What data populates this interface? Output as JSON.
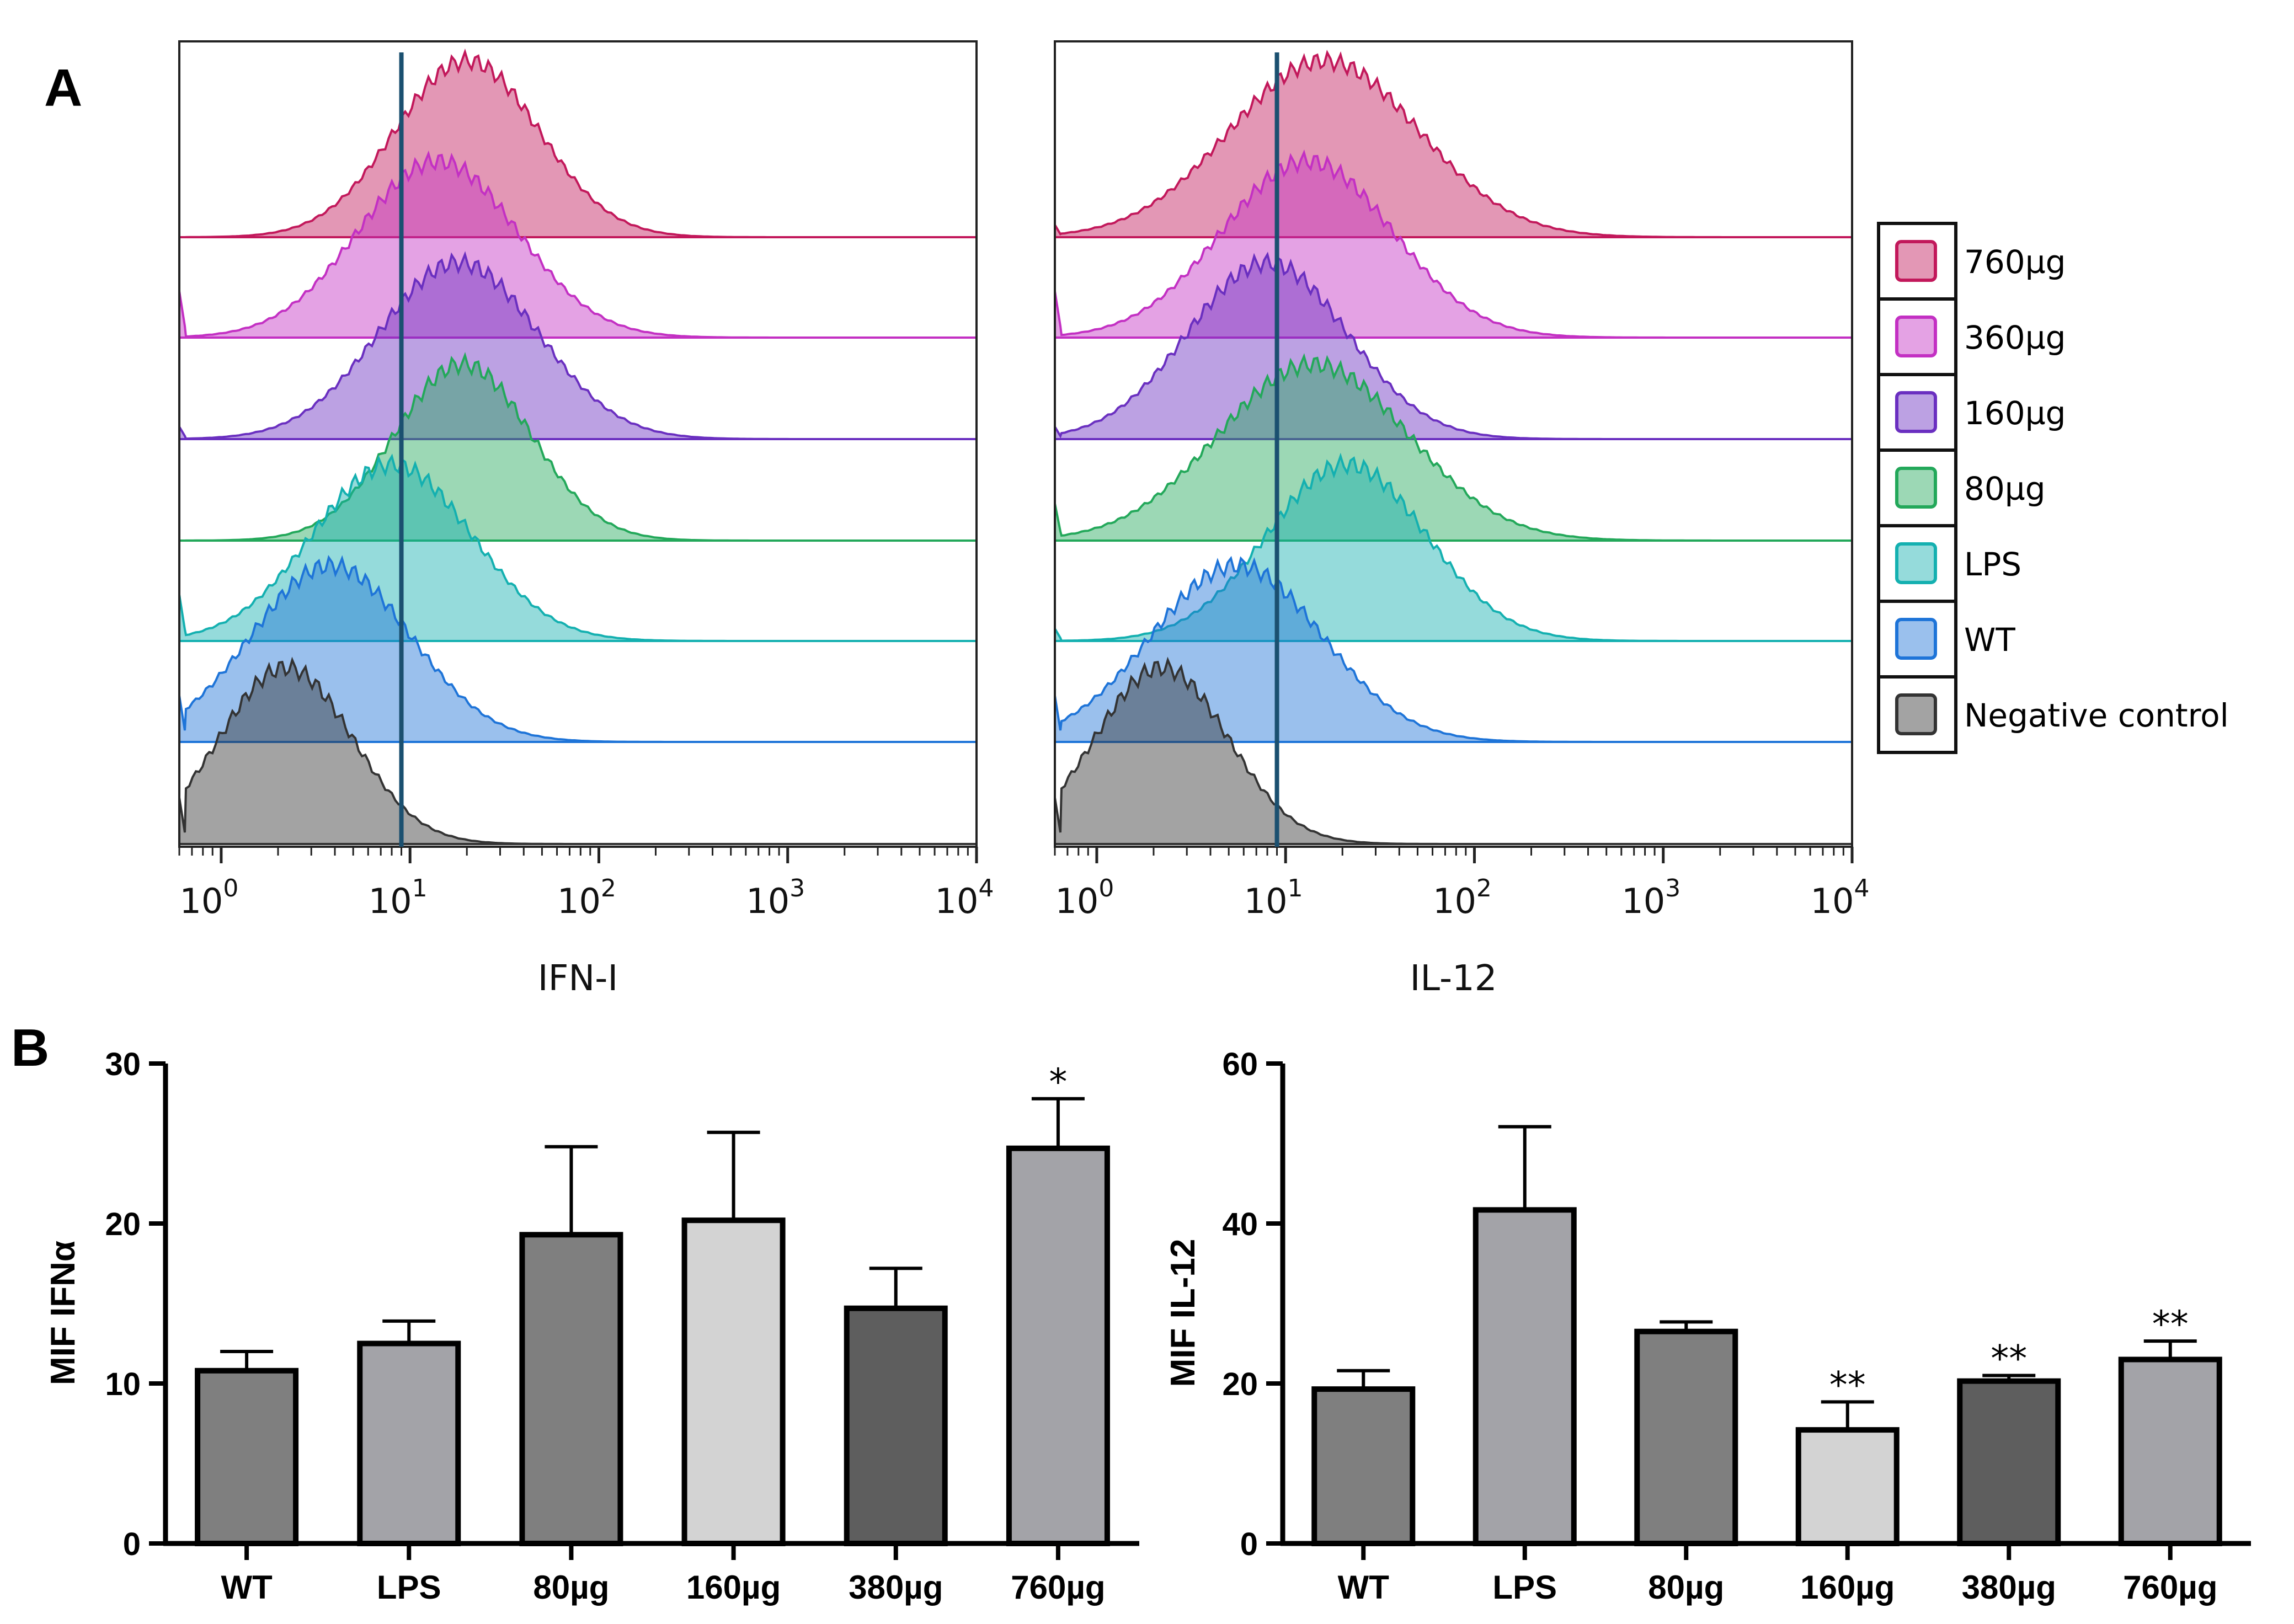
{
  "panel_labels": {
    "a": "A",
    "b": "B"
  },
  "colors": {
    "760µg": "#c2185b",
    "360µg": "#c330c3",
    "160µg": "#6a2fc0",
    "80µg": "#23a85a",
    "LPS": "#14b0b0",
    "WT": "#1e74d8",
    "Negative control": "#333333",
    "gate_line": "#1b5070"
  },
  "legend": {
    "entries": [
      "760µg",
      "360µg",
      "160µg",
      "80µg",
      "LPS",
      "WT",
      "Negative control"
    ]
  },
  "chart_data": [
    {
      "type": "histogram",
      "title": "",
      "xlabel": "IFN-I",
      "x_scale": "log10",
      "xlim": [
        0.6,
        10000
      ],
      "x_ticks": [
        {
          "value": 1,
          "base": "10",
          "exp": "0"
        },
        {
          "value": 10,
          "base": "10",
          "exp": "1"
        },
        {
          "value": 100,
          "base": "10",
          "exp": "2"
        },
        {
          "value": 1000,
          "base": "10",
          "exp": "3"
        },
        {
          "value": 10000,
          "base": "10",
          "exp": "4"
        }
      ],
      "gate": 9,
      "series": [
        {
          "name": "760µg",
          "peak": 20,
          "spread": 0.38,
          "baseline_spike": 0.0
        },
        {
          "name": "360µg",
          "peak": 14,
          "spread": 0.42,
          "baseline_spike": 0.75
        },
        {
          "name": "160µg",
          "peak": 18,
          "spread": 0.42,
          "baseline_spike": 0.2
        },
        {
          "name": "80µg",
          "peak": 19,
          "spread": 0.36,
          "baseline_spike": 0.0
        },
        {
          "name": "LPS",
          "peak": 8,
          "spread": 0.42,
          "baseline_spike": 0.75
        },
        {
          "name": "WT",
          "peak": 3.8,
          "spread": 0.42,
          "baseline_spike": 0.75
        },
        {
          "name": "Negative control",
          "peak": 2.2,
          "spread": 0.35,
          "baseline_spike": 0.75
        }
      ]
    },
    {
      "type": "histogram",
      "title": "",
      "xlabel": "IL-12",
      "x_scale": "log10",
      "xlim": [
        0.6,
        10000
      ],
      "x_ticks": [
        {
          "value": 1,
          "base": "10",
          "exp": "0"
        },
        {
          "value": 10,
          "base": "10",
          "exp": "1"
        },
        {
          "value": 100,
          "base": "10",
          "exp": "2"
        },
        {
          "value": 1000,
          "base": "10",
          "exp": "3"
        },
        {
          "value": 10000,
          "base": "10",
          "exp": "4"
        }
      ],
      "gate": 9,
      "series": [
        {
          "name": "760µg",
          "peak": 16,
          "spread": 0.5,
          "baseline_spike": 0.2
        },
        {
          "name": "360µg",
          "peak": 13,
          "spread": 0.45,
          "baseline_spike": 0.75
        },
        {
          "name": "160µg",
          "peak": 8,
          "spread": 0.42,
          "baseline_spike": 0.2
        },
        {
          "name": "80µg",
          "peak": 14,
          "spread": 0.5,
          "baseline_spike": 0.6
        },
        {
          "name": "LPS",
          "peak": 21,
          "spread": 0.42,
          "baseline_spike": 0.2
        },
        {
          "name": "WT",
          "peak": 5.5,
          "spread": 0.45,
          "baseline_spike": 0.75
        },
        {
          "name": "Negative control",
          "peak": 2.2,
          "spread": 0.35,
          "baseline_spike": 0.75
        }
      ]
    },
    {
      "type": "bar",
      "title": "",
      "xlabel": "",
      "ylabel": "MIF IFNα",
      "ylim": [
        0,
        30
      ],
      "yticks": [
        0,
        10,
        20,
        30
      ],
      "categories": [
        "WT",
        "LPS",
        "80µg",
        "160µg",
        "380µg",
        "760µg"
      ],
      "values": [
        10.8,
        12.5,
        19.3,
        20.2,
        14.7,
        24.7
      ],
      "errors": [
        1.2,
        1.4,
        5.5,
        5.5,
        2.5,
        3.1
      ],
      "significance": [
        "",
        "",
        "",
        "",
        "",
        "*"
      ],
      "bar_colors": [
        "#7f7f7f",
        "#a3a3a8",
        "#7f7f7f",
        "#d3d3d3",
        "#5e5e5e",
        "#a3a3a8"
      ]
    },
    {
      "type": "bar",
      "title": "",
      "xlabel": "",
      "ylabel": "MIF IL-12",
      "ylim": [
        0,
        60
      ],
      "yticks": [
        0,
        20,
        40,
        60
      ],
      "categories": [
        "WT",
        "LPS",
        "80µg",
        "160µg",
        "380µg",
        "760µg"
      ],
      "values": [
        19.3,
        41.7,
        26.5,
        14.2,
        20.3,
        23.0
      ],
      "errors": [
        2.3,
        10.4,
        1.2,
        3.5,
        0.7,
        2.3
      ],
      "significance": [
        "",
        "",
        "",
        "**",
        "**",
        "**"
      ],
      "bar_colors": [
        "#7f7f7f",
        "#a3a3a8",
        "#7f7f7f",
        "#d3d3d3",
        "#5e5e5e",
        "#a3a3a8"
      ]
    }
  ]
}
